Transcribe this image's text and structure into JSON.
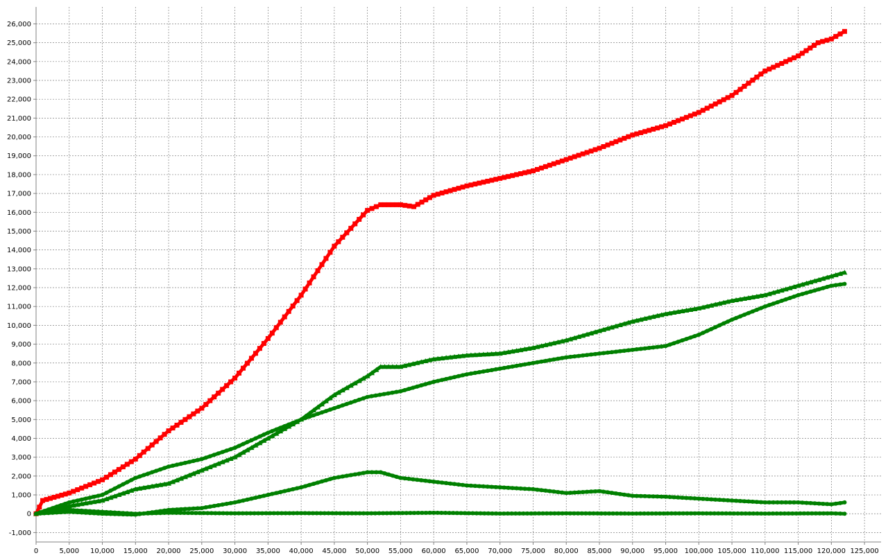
{
  "chart_data": {
    "type": "line",
    "title": "",
    "xlabel": "",
    "ylabel": "",
    "xlim": [
      0,
      127500
    ],
    "ylim": [
      -1500,
      26900
    ],
    "grid": true,
    "legend": "none",
    "x_ticks": [
      0,
      5000,
      10000,
      15000,
      20000,
      25000,
      30000,
      35000,
      40000,
      45000,
      50000,
      55000,
      60000,
      65000,
      70000,
      75000,
      80000,
      85000,
      90000,
      95000,
      100000,
      105000,
      110000,
      115000,
      120000,
      125000
    ],
    "x_tick_labels": [
      "0",
      "5,000",
      "10,000",
      "15,000",
      "20,000",
      "25,000",
      "30,000",
      "35,000",
      "40,000",
      "45,000",
      "50,000",
      "55,000",
      "60,000",
      "65,000",
      "70,000",
      "75,000",
      "80,000",
      "85,000",
      "90,000",
      "95,000",
      "100,000",
      "105,000",
      "110,000",
      "115,000",
      "120,000",
      "125,000"
    ],
    "y_ticks": [
      -1000,
      0,
      1000,
      2000,
      3000,
      4000,
      5000,
      6000,
      7000,
      8000,
      9000,
      10000,
      11000,
      12000,
      13000,
      14000,
      15000,
      16000,
      17000,
      18000,
      19000,
      20000,
      21000,
      22000,
      23000,
      24000,
      25000,
      26000
    ],
    "y_tick_labels": [
      "-1,000",
      "0",
      "1,000",
      "2,000",
      "3,000",
      "4,000",
      "5,000",
      "6,000",
      "7,000",
      "8,000",
      "9,000",
      "10,000",
      "11,000",
      "12,000",
      "13,000",
      "14,000",
      "15,000",
      "16,000",
      "17,000",
      "18,000",
      "19,000",
      "20,000",
      "21,000",
      "22,000",
      "23,000",
      "24,000",
      "25,000",
      "26,000"
    ],
    "series": [
      {
        "color": "#ff0000",
        "marker": "square",
        "x": [
          0,
          1000,
          5000,
          10000,
          15000,
          20000,
          25000,
          30000,
          35000,
          40000,
          45000,
          50000,
          52000,
          55000,
          57000,
          60000,
          65000,
          70000,
          75000,
          80000,
          85000,
          90000,
          95000,
          100000,
          105000,
          110000,
          115000,
          118000,
          120000,
          122000
        ],
        "y": [
          0,
          700,
          1100,
          1800,
          2900,
          4400,
          5600,
          7200,
          9300,
          11600,
          14200,
          16100,
          16400,
          16400,
          16300,
          16900,
          17400,
          17800,
          18200,
          18800,
          19400,
          20100,
          20600,
          21300,
          22200,
          23500,
          24300,
          25000,
          25200,
          25600
        ]
      },
      {
        "color": "#008000",
        "marker": "triangle",
        "x": [
          0,
          5000,
          10000,
          15000,
          20000,
          25000,
          30000,
          35000,
          40000,
          45000,
          50000,
          52000,
          55000,
          60000,
          65000,
          70000,
          75000,
          80000,
          85000,
          90000,
          95000,
          100000,
          105000,
          110000,
          115000,
          120000,
          122000
        ],
        "y": [
          0,
          400,
          700,
          1300,
          1600,
          2300,
          3000,
          4000,
          5000,
          6300,
          7300,
          7800,
          7800,
          8200,
          8400,
          8500,
          8800,
          9200,
          9700,
          10200,
          10600,
          10900,
          11300,
          11600,
          12100,
          12600,
          12800
        ]
      },
      {
        "color": "#008000",
        "marker": "circle",
        "x": [
          0,
          5000,
          10000,
          15000,
          20000,
          25000,
          30000,
          35000,
          40000,
          45000,
          50000,
          55000,
          60000,
          65000,
          70000,
          75000,
          80000,
          85000,
          90000,
          95000,
          100000,
          105000,
          110000,
          115000,
          120000,
          122000
        ],
        "y": [
          0,
          600,
          1000,
          1900,
          2500,
          2900,
          3500,
          4300,
          5000,
          5600,
          6200,
          6500,
          7000,
          7400,
          7700,
          8000,
          8300,
          8500,
          8700,
          8900,
          9500,
          10300,
          11000,
          11600,
          12100,
          12200
        ]
      },
      {
        "color": "#008000",
        "marker": "circle",
        "x": [
          0,
          5000,
          10000,
          15000,
          20000,
          25000,
          30000,
          35000,
          40000,
          45000,
          50000,
          52000,
          55000,
          60000,
          65000,
          70000,
          75000,
          80000,
          85000,
          90000,
          95000,
          100000,
          105000,
          110000,
          115000,
          120000,
          122000
        ],
        "y": [
          0,
          100,
          0,
          -50,
          200,
          300,
          600,
          1000,
          1400,
          1900,
          2200,
          2200,
          1900,
          1700,
          1500,
          1400,
          1300,
          1100,
          1200,
          950,
          900,
          800,
          700,
          600,
          600,
          500,
          600
        ]
      },
      {
        "color": "#008000",
        "marker": "circle",
        "x": [
          0,
          5000,
          10000,
          15000,
          20000,
          30000,
          40000,
          50000,
          60000,
          70000,
          80000,
          90000,
          100000,
          110000,
          120000,
          122000
        ],
        "y": [
          0,
          200,
          100,
          0,
          50,
          20,
          30,
          20,
          50,
          10,
          20,
          10,
          20,
          10,
          20,
          0
        ]
      }
    ]
  }
}
